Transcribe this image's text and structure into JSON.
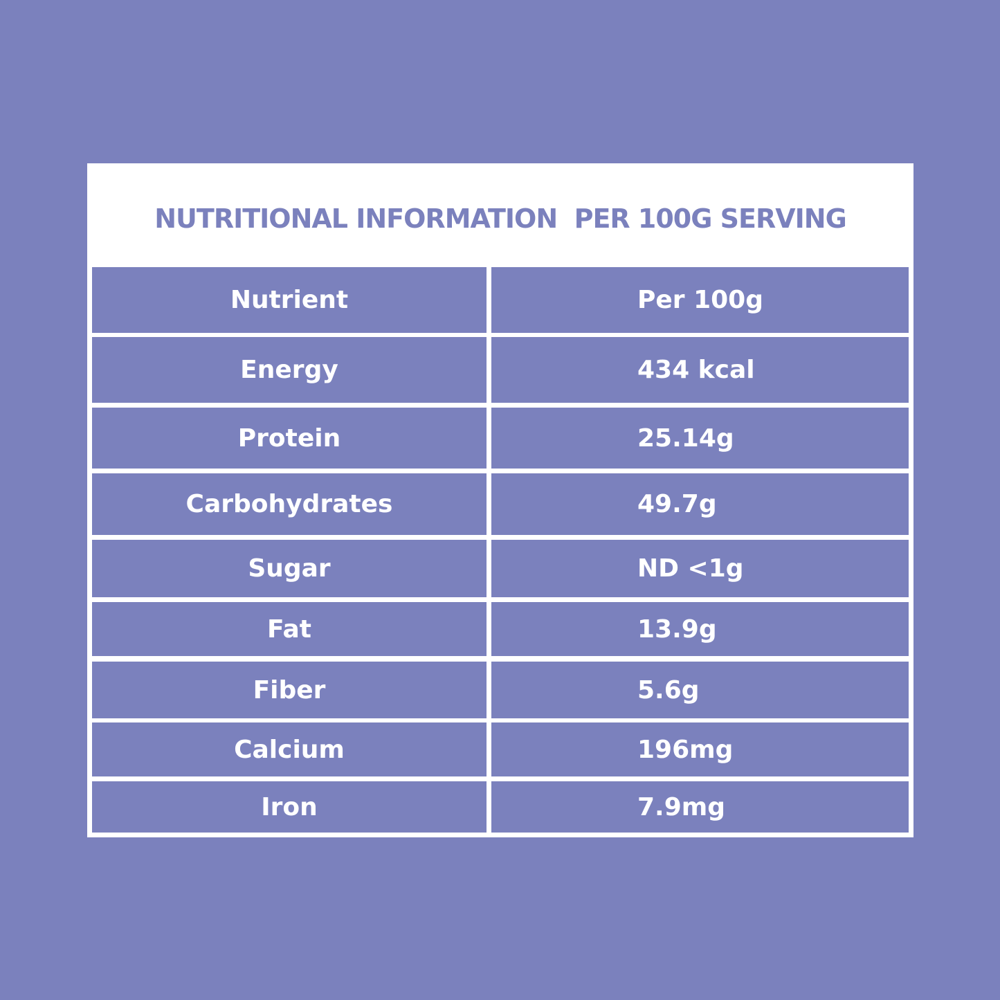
{
  "title": "NUTRITIONAL INFORMATION  PER 100G SERVING",
  "table": {
    "header": [
      "Nutrient",
      "Per 100g"
    ],
    "rows": [
      [
        "Energy",
        "434 kcal"
      ],
      [
        "Protein",
        "25.14g"
      ],
      [
        "Carbohydrates",
        "49.7g"
      ],
      [
        "Sugar",
        "ND <1g"
      ],
      [
        "Fat",
        "13.9g"
      ],
      [
        "Fiber",
        "5.6g"
      ],
      [
        "Calcium",
        "196mg"
      ],
      [
        "Iron",
        "7.9mg"
      ]
    ]
  }
}
